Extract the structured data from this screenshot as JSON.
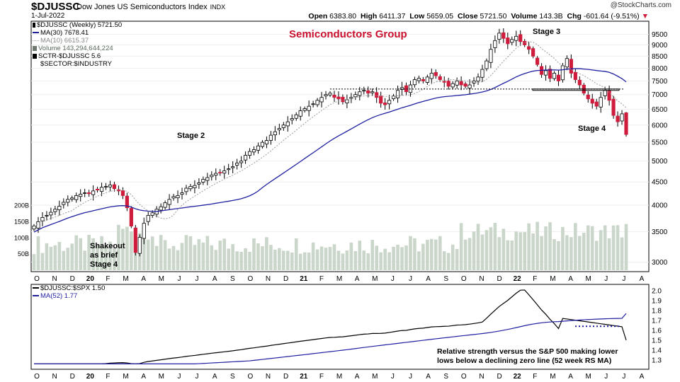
{
  "header": {
    "symbol": "$DJUSSC",
    "name": "Dow Jones US Semiconductors Index",
    "exchange": "INDX",
    "date": "1-Jul-2022",
    "open": "6383.80",
    "high": "6411.37",
    "low": "5659.05",
    "close": "5721.50",
    "volume": "143.3B",
    "change": "-601.64 (-9.51%)",
    "labels": {
      "open": "Open",
      "high": "High",
      "low": "Low",
      "close": "Close",
      "volume": "Volume",
      "chg": "Chg"
    },
    "watermark": "@StockCharts.com"
  },
  "legend_top": [
    {
      "text": "$DJUSSC (Weekly) 5721.50",
      "swatch": "#000000",
      "kind": "candle"
    },
    {
      "text": "MA(30) 7678.41",
      "swatch": "#1f1fa0",
      "kind": "line"
    },
    {
      "text": "MA(10) 6615.37",
      "swatch": "#999999",
      "kind": "dotted"
    },
    {
      "text": "Volume 143,294,644,224",
      "swatch": "#6e7a70",
      "kind": "bar"
    },
    {
      "text": "SCTR-$DJUSSC 5.6",
      "swatch": "",
      "kind": "none"
    },
    {
      "text": "$SECTOR:$INDUSTRY",
      "swatch": "",
      "kind": "none"
    }
  ],
  "legend_bottom": [
    {
      "text": "$DJUSSC:$SPX 1.50",
      "swatch": "#000000"
    },
    {
      "text": "MA(52) 1.77",
      "swatch": "#1f1fa0"
    }
  ],
  "annotations": {
    "title": "Semiconductors Group",
    "stage1_note": [
      "Shakeout",
      "as brief",
      "Stage 4"
    ],
    "stage2": "Stage 2",
    "stage3": "Stage 3",
    "stage4": "Stage 4",
    "rs_note": [
      "Relative strength versus the S&P 500 making lower",
      "lows below a declining zero line (52 week RS MA)"
    ]
  },
  "colors": {
    "up": "#ffffff",
    "down": "#d01c3c",
    "ma30": "#1f1fa0",
    "ma10": "#9a9a9a",
    "volume": "#c9d6c9",
    "rs": "#000000",
    "rsma": "#1f1fa0",
    "accent": "#c8102e"
  },
  "chart_data": [
    {
      "type": "candlestick",
      "title": "$DJUSSC (Weekly)",
      "y_scale": "log",
      "y_ticks": [
        3000,
        3500,
        4000,
        4500,
        5000,
        5500,
        6000,
        6500,
        7000,
        7500,
        8000,
        8500,
        9000,
        9500
      ],
      "y_tick_labels": [
        "3000",
        "3500",
        "4000",
        "4500",
        "5000",
        "5500",
        "6000",
        "6500",
        "7000",
        "7500",
        "8000",
        "8500",
        "9000",
        "9500"
      ],
      "x_tick_labels": [
        "O",
        "N",
        "D",
        "20",
        "F",
        "M",
        "A",
        "M",
        "J",
        "J",
        "A",
        "S",
        "O",
        "N",
        "D",
        "21",
        "F",
        "M",
        "A",
        "M",
        "J",
        "J",
        "A",
        "S",
        "O",
        "N",
        "D",
        "22",
        "F",
        "M",
        "A",
        "M",
        "J",
        "J",
        "A"
      ],
      "close_series_approx": [
        3600,
        3680,
        3760,
        3800,
        3860,
        3920,
        3980,
        4060,
        4120,
        4150,
        4200,
        4230,
        4260,
        4240,
        4300,
        4320,
        4380,
        4400,
        4430,
        4350,
        4300,
        4200,
        3950,
        3600,
        3150,
        3400,
        3650,
        3800,
        3850,
        3920,
        3970,
        4050,
        4120,
        4180,
        4200,
        4260,
        4360,
        4400,
        4420,
        4480,
        4560,
        4600,
        4660,
        4700,
        4720,
        4760,
        4810,
        4860,
        4950,
        5000,
        5150,
        5250,
        5300,
        5400,
        5500,
        5550,
        5700,
        5800,
        5900,
        6000,
        6100,
        6200,
        6320,
        6450,
        6520,
        6600,
        6680,
        6800,
        6900,
        7000,
        7050,
        6900,
        6850,
        6750,
        6820,
        6900,
        7000,
        7100,
        7150,
        7050,
        7100,
        6900,
        6700,
        6650,
        6800,
        6950,
        7150,
        7250,
        7100,
        7350,
        7550,
        7600,
        7500,
        7650,
        7800,
        7700,
        7550,
        7450,
        7300,
        7400,
        7500,
        7350,
        7300,
        7350,
        7500,
        7650,
        7950,
        8300,
        8800,
        9200,
        9550,
        9300,
        9050,
        9250,
        9400,
        9150,
        9000,
        8800,
        8500,
        8150,
        7750,
        7900,
        7600,
        7800,
        7500,
        8100,
        8400,
        7800,
        7550,
        7350,
        7050,
        6850,
        6700,
        6600,
        6900,
        7150,
        6800,
        6300,
        6100,
        6350,
        5721.5
      ],
      "ma30_approx_end": 7678.41,
      "ma10_approx_end": 6615.37,
      "horizontal_level": 7200,
      "volume_ticks": [
        "50B",
        "100B",
        "150B",
        "200B"
      ],
      "volume_last": 143294644224
    },
    {
      "type": "line",
      "title": "$DJUSSC:$SPX",
      "y_ticks": [
        1.3,
        1.4,
        1.5,
        1.6,
        1.7,
        1.8,
        1.9,
        2.0
      ],
      "y_tick_labels": [
        "1.3",
        "1.4",
        "1.5",
        "1.6",
        "1.7",
        "1.8",
        "1.9",
        "2.0"
      ],
      "x_tick_labels": [
        "O",
        "N",
        "D",
        "20",
        "F",
        "M",
        "A",
        "M",
        "J",
        "J",
        "A",
        "S",
        "O",
        "N",
        "D",
        "21",
        "F",
        "M",
        "A",
        "M",
        "J",
        "J",
        "A",
        "S",
        "O",
        "N",
        "D",
        "22",
        "F",
        "M",
        "A",
        "M",
        "J",
        "J",
        "A"
      ],
      "series": [
        {
          "name": "$DJUSSC:$SPX",
          "last": 1.5
        },
        {
          "name": "MA(52)",
          "last": 1.77
        }
      ],
      "support_level": 1.64
    }
  ]
}
